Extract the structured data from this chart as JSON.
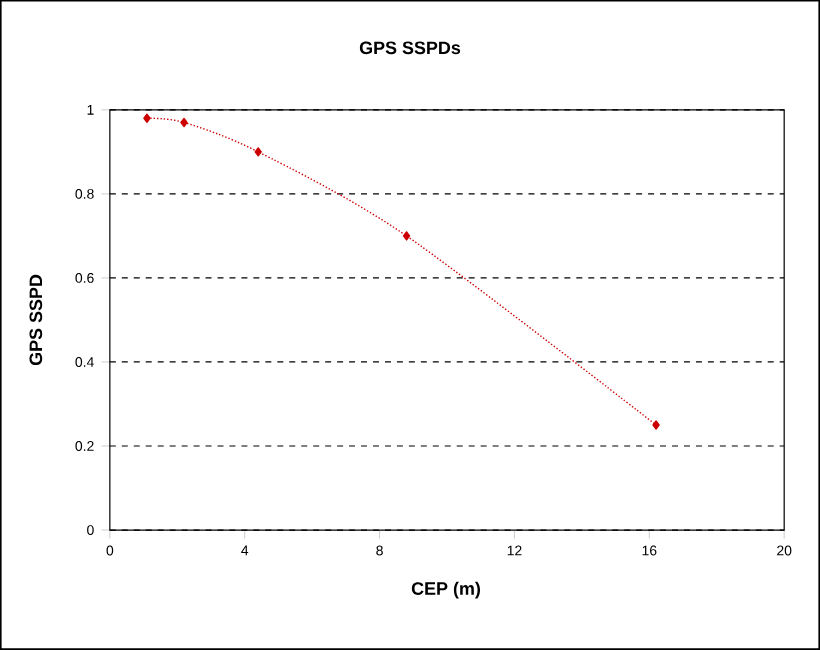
{
  "chart_data": {
    "type": "line",
    "title": "GPS SSPDs",
    "xlabel": "CEP (m)",
    "ylabel": "GPS SSPD",
    "x": [
      1.1,
      2.2,
      4.4,
      8.8,
      16.2
    ],
    "series": [
      {
        "color": "#cc0000",
        "values": [
          0.98,
          0.97,
          0.9,
          0.7,
          0.25
        ]
      }
    ],
    "xlim": [
      0,
      20
    ],
    "xticks": [
      0,
      4,
      8,
      12,
      16,
      20
    ],
    "ylim": [
      0,
      1
    ],
    "yticks": [
      0,
      0.2,
      0.4,
      0.6,
      0.8,
      1
    ],
    "grid": "y",
    "marker": "diamond",
    "line_style": "dotted"
  }
}
